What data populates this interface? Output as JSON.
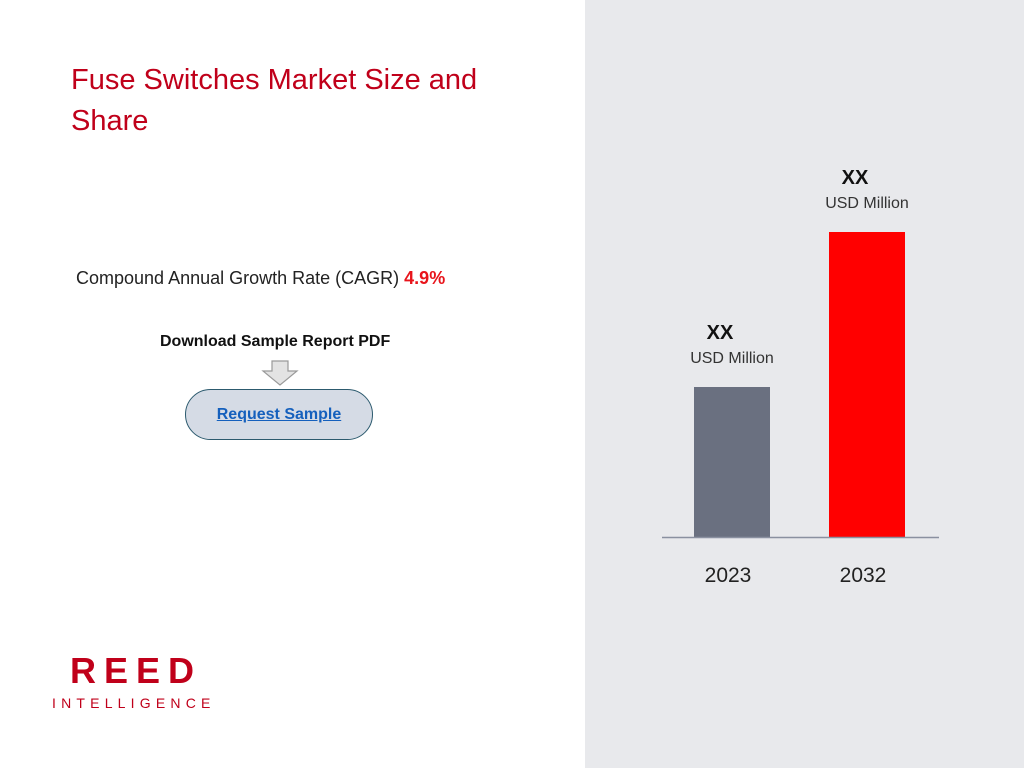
{
  "title": "Fuse Switches Market Size and Share",
  "cagr": {
    "label": "Compound Annual Growth Rate (CAGR)",
    "value": "4.9%"
  },
  "download": {
    "label": "Download Sample Report PDF",
    "button_label": "Request Sample",
    "arrow_icon": "down-arrow-icon"
  },
  "logo": {
    "main": "REED",
    "sub": "INTELLIGENCE"
  },
  "colors": {
    "title": "#c0001a",
    "cagr_value": "#e8141b",
    "bar_2023": "#6a7080",
    "bar_2032": "#ff0000",
    "right_panel": "#e8e9ec"
  },
  "chart_data": {
    "type": "bar",
    "categories": [
      "2023",
      "2032"
    ],
    "values": [
      150,
      305
    ],
    "value_labels": [
      "XX",
      "XX"
    ],
    "unit_labels": [
      "USD Million",
      "USD Million"
    ],
    "bar_colors": [
      "#6a7080",
      "#ff0000"
    ],
    "ylim": [
      0,
      340
    ],
    "grid": false,
    "legend": "none"
  }
}
